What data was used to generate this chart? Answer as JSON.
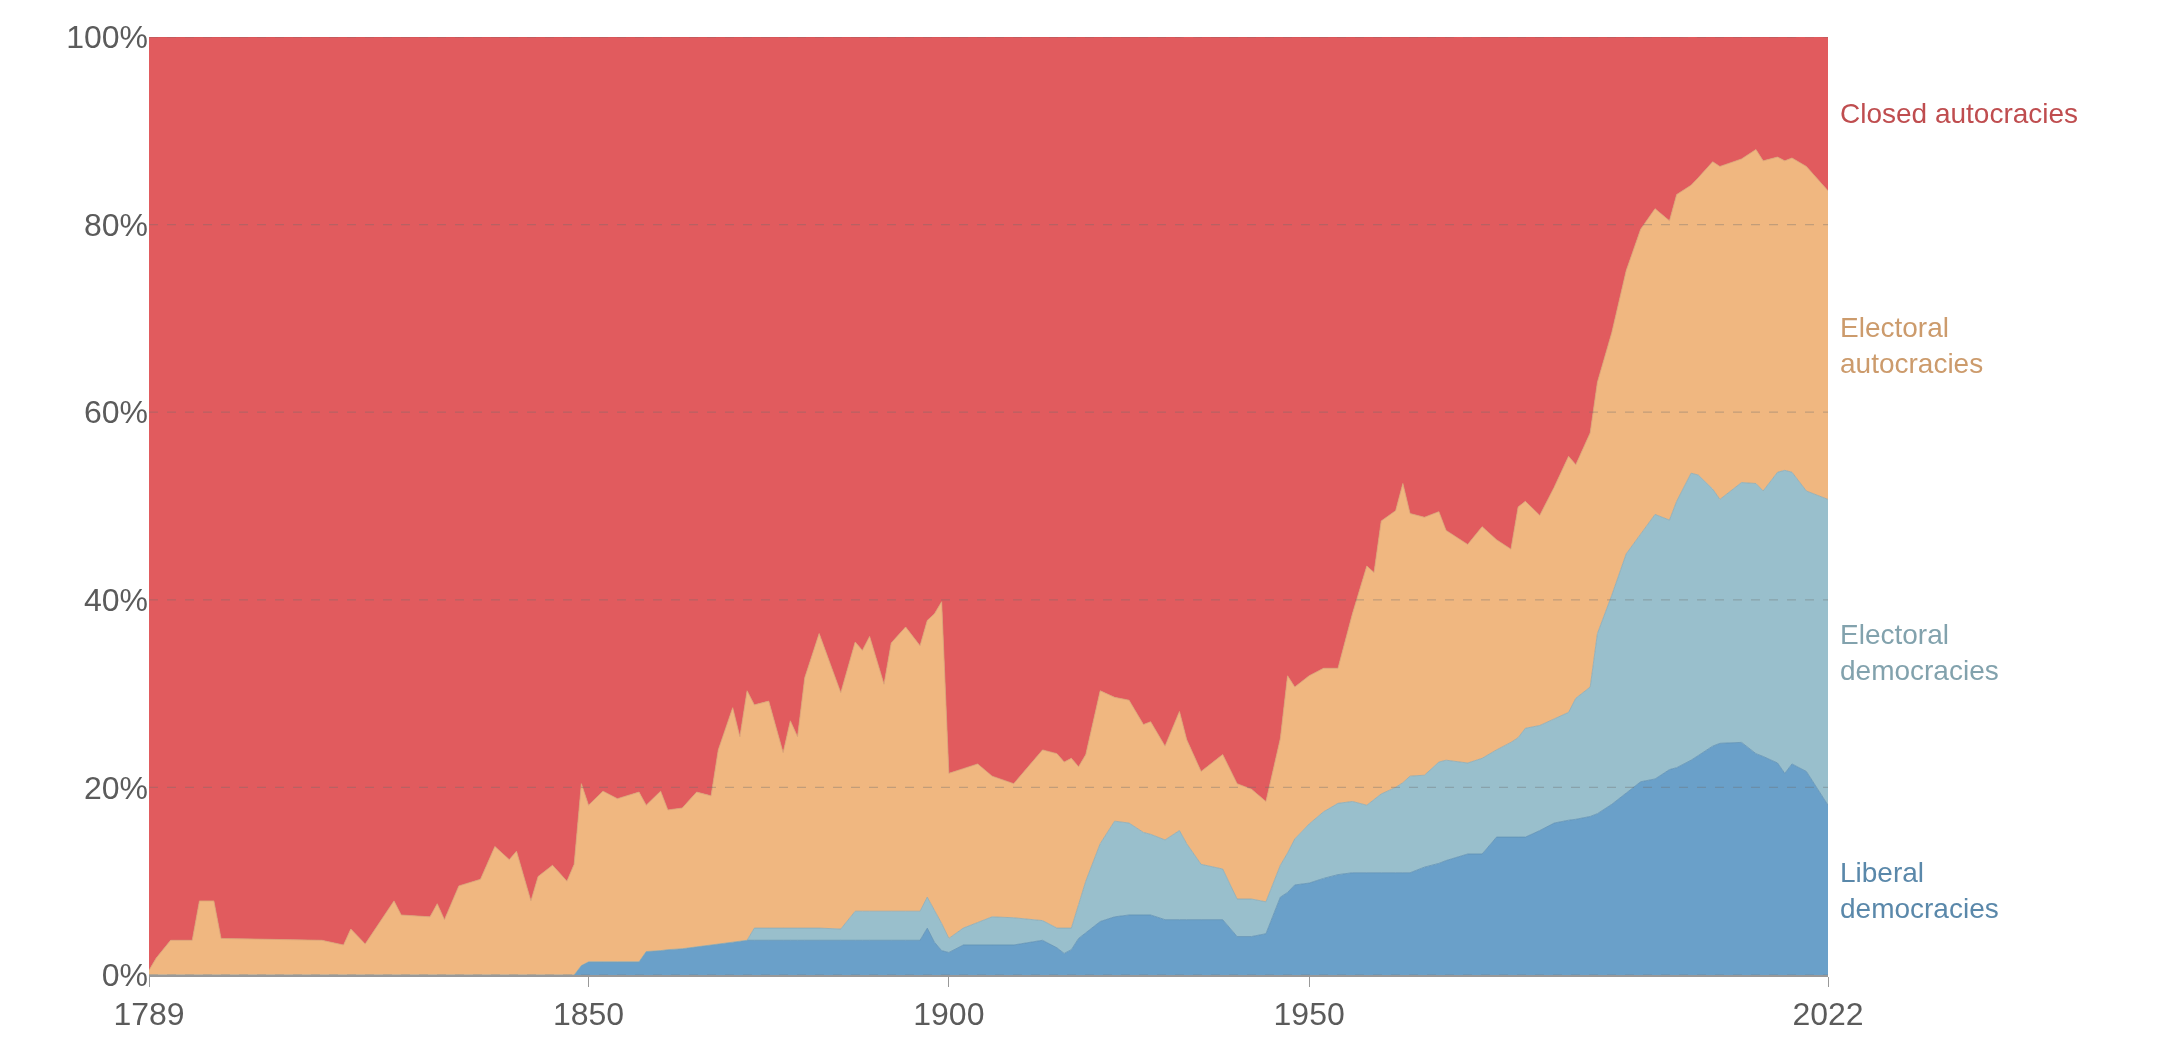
{
  "chart_data": {
    "type": "area",
    "stacked": true,
    "legend": false,
    "grid": "y",
    "x": [
      1789,
      1790,
      1792,
      1795,
      1796,
      1798,
      1799,
      1813,
      1816,
      1817,
      1819,
      1823,
      1824,
      1828,
      1829,
      1830,
      1832,
      1835,
      1837,
      1839,
      1840,
      1842,
      1843,
      1845,
      1847,
      1848,
      1849,
      1850,
      1852,
      1854,
      1857,
      1858,
      1860,
      1861,
      1863,
      1865,
      1867,
      1868,
      1870,
      1871,
      1872,
      1873,
      1875,
      1877,
      1878,
      1879,
      1880,
      1882,
      1885,
      1887,
      1888,
      1889,
      1891,
      1892,
      1894,
      1896,
      1897,
      1898,
      1899,
      1900,
      1902,
      1904,
      1906,
      1909,
      1913,
      1915,
      1916,
      1917,
      1918,
      1919,
      1921,
      1923,
      1925,
      1927,
      1928,
      1930,
      1932,
      1933,
      1935,
      1938,
      1940,
      1942,
      1944,
      1946,
      1947,
      1948,
      1950,
      1952,
      1954,
      1956,
      1958,
      1959,
      1960,
      1962,
      1963,
      1964,
      1966,
      1968,
      1969,
      1972,
      1974,
      1976,
      1978,
      1979,
      1980,
      1982,
      1984,
      1986,
      1987,
      1989,
      1990,
      1992,
      1994,
      1996,
      1998,
      2000,
      2001,
      2003,
      2004,
      2006,
      2007,
      2010,
      2012,
      2013,
      2015,
      2016,
      2017,
      2019,
      2022
    ],
    "series": [
      {
        "name": "Liberal democracies",
        "color": "#6aa0c9",
        "values": [
          0,
          0,
          0,
          0,
          0,
          0,
          0,
          0,
          0,
          0,
          0,
          0,
          0,
          0,
          0,
          0,
          0,
          0,
          0,
          0,
          0,
          0,
          0,
          0,
          0,
          0,
          1.0,
          1.4,
          1.4,
          1.4,
          1.4,
          2.5,
          2.6,
          2.7,
          2.8,
          3.0,
          3.2,
          3.3,
          3.5,
          3.6,
          3.7,
          3.7,
          3.7,
          3.7,
          3.7,
          3.7,
          3.7,
          3.7,
          3.7,
          3.7,
          3.7,
          3.7,
          3.7,
          3.7,
          3.7,
          3.7,
          5.0,
          3.5,
          2.6,
          2.4,
          3.2,
          3.2,
          3.2,
          3.2,
          3.7,
          2.9,
          2.3,
          2.7,
          3.9,
          4.5,
          5.7,
          6.2,
          6.4,
          6.4,
          6.4,
          5.9,
          5.9,
          5.9,
          5.9,
          5.9,
          4.1,
          4.1,
          4.4,
          8.3,
          8.8,
          9.6,
          9.8,
          10.3,
          10.7,
          10.9,
          10.9,
          10.9,
          10.9,
          10.9,
          10.9,
          10.9,
          11.5,
          11.9,
          12.2,
          12.9,
          12.9,
          14.7,
          14.7,
          14.7,
          14.7,
          15.4,
          16.2,
          16.5,
          16.6,
          16.9,
          17.2,
          18.2,
          19.4,
          20.6,
          20.9,
          21.9,
          22.1,
          22.9,
          23.4,
          24.4,
          24.7,
          24.8,
          23.6,
          23.3,
          22.6,
          21.5,
          22.5,
          21.7,
          18.1
        ]
      },
      {
        "name": "Electoral democracies",
        "color": "#99bfcc",
        "values": [
          0,
          0,
          0,
          0,
          0,
          0,
          0,
          0,
          0,
          0,
          0,
          0,
          0,
          0,
          0,
          0,
          0,
          0,
          0,
          0,
          0,
          0,
          0,
          0,
          0,
          0,
          0,
          0,
          0,
          0,
          0,
          0,
          0,
          0,
          0,
          0,
          0,
          0,
          0,
          0,
          0,
          1.3,
          1.3,
          1.3,
          1.3,
          1.3,
          1.3,
          1.3,
          1.2,
          3.1,
          3.1,
          3.1,
          3.1,
          3.1,
          3.1,
          3.1,
          3.3,
          3.4,
          2.9,
          1.5,
          1.8,
          2.4,
          3.0,
          2.9,
          2.1,
          2.1,
          2.7,
          2.3,
          3.6,
          5.5,
          8.3,
          10.2,
          9.8,
          8.8,
          8.6,
          8.5,
          9.5,
          8.1,
          5.9,
          5.4,
          4.0,
          4.0,
          3.4,
          3.4,
          4.2,
          4.9,
          6.3,
          7.1,
          7.6,
          7.6,
          7.2,
          7.8,
          8.4,
          9.1,
          9.6,
          10.3,
          9.8,
          10.8,
          10.7,
          9.7,
          10.2,
          9.3,
          10.1,
          10.6,
          11.6,
          11.2,
          11.1,
          11.5,
          12.9,
          13.8,
          19.2,
          22.3,
          25.5,
          26.4,
          28.2,
          26.6,
          28.4,
          30.6,
          29.9,
          27.4,
          26.0,
          27.7,
          28.8,
          28.3,
          31.0,
          32.3,
          31.1,
          29.9,
          32.6
        ]
      },
      {
        "name": "Electoral autocracies",
        "color": "#f0b780",
        "values": [
          0.5,
          1.8,
          3.7,
          3.7,
          7.9,
          7.9,
          3.9,
          3.7,
          3.2,
          4.9,
          3.3,
          7.9,
          6.4,
          6.2,
          7.6,
          5.9,
          9.5,
          10.2,
          13.7,
          12.3,
          13.2,
          7.9,
          10.5,
          11.7,
          10.0,
          11.8,
          19.4,
          16.7,
          18.2,
          17.4,
          18.1,
          15.6,
          17.0,
          14.9,
          15.0,
          16.5,
          15.9,
          20.7,
          25.0,
          21.8,
          26.6,
          23.8,
          24.2,
          18.7,
          22.1,
          20.4,
          26.7,
          31.4,
          25.2,
          28.7,
          27.8,
          29.3,
          24.2,
          28.6,
          30.3,
          28.3,
          29.5,
          31.6,
          34.3,
          17.6,
          17.0,
          16.9,
          15.0,
          14.3,
          18.2,
          18.6,
          17.7,
          18.1,
          14.7,
          13.5,
          16.3,
          13.2,
          13.1,
          11.5,
          12.0,
          10.0,
          12.7,
          11.1,
          9.9,
          12.2,
          12.3,
          11.7,
          10.7,
          13.5,
          18.9,
          16.2,
          15.8,
          15.3,
          14.4,
          20.0,
          25.5,
          24.2,
          29.1,
          29.5,
          31.9,
          28.0,
          27.5,
          26.7,
          24.5,
          23.3,
          24.7,
          22.4,
          20.6,
          24.6,
          24.2,
          22.4,
          24.7,
          27.3,
          24.9,
          27.1,
          26.8,
          28.0,
          30.2,
          32.5,
          32.6,
          31.9,
          32.7,
          30.7,
          31.7,
          34.9,
          35.5,
          34.5,
          35.6,
          35.2,
          33.6,
          33.0,
          33.5,
          34.6,
          32.9
        ]
      },
      {
        "name": "Closed autocracies",
        "color": "#e15b5e",
        "values": [
          99.5,
          98.2,
          96.3,
          96.3,
          92.1,
          92.1,
          96.1,
          96.3,
          96.8,
          95.1,
          96.7,
          92.1,
          93.6,
          93.8,
          92.4,
          94.1,
          90.5,
          89.8,
          86.3,
          87.7,
          86.8,
          92.1,
          89.5,
          88.3,
          90.0,
          88.2,
          79.6,
          81.9,
          80.4,
          81.2,
          80.5,
          81.9,
          80.4,
          82.4,
          82.2,
          80.5,
          80.9,
          76.0,
          71.5,
          74.6,
          69.7,
          71.2,
          70.8,
          76.3,
          72.9,
          74.6,
          68.3,
          63.6,
          69.9,
          64.5,
          65.4,
          63.9,
          69.0,
          64.6,
          62.9,
          64.9,
          62.2,
          61.5,
          60.2,
          78.5,
          78.0,
          77.5,
          78.8,
          79.6,
          76.0,
          76.4,
          77.3,
          76.9,
          77.8,
          76.5,
          69.7,
          70.4,
          70.7,
          73.3,
          73.0,
          75.6,
          71.9,
          75.0,
          78.3,
          76.5,
          79.6,
          80.2,
          81.5,
          74.8,
          68.1,
          69.3,
          68.1,
          67.3,
          67.3,
          61.5,
          56.4,
          57.1,
          51.6,
          50.5,
          47.6,
          50.8,
          51.2,
          50.6,
          52.6,
          54.2,
          52.2,
          53.6,
          54.6,
          50.1,
          49.5,
          51.0,
          48.0,
          44.7,
          45.6,
          42.2,
          36.8,
          31.5,
          24.9,
          20.5,
          18.3,
          19.6,
          16.8,
          15.9,
          15.0,
          13.3,
          13.8,
          13.0,
          12.0,
          13.2,
          12.8,
          13.2,
          12.9,
          13.9,
          16.4
        ]
      }
    ],
    "xlim": [
      1789,
      2022
    ],
    "xticks": [
      1789,
      1850,
      1900,
      1950,
      2022
    ],
    "ylim": [
      0,
      100
    ],
    "yticks": [
      {
        "value": 0,
        "label": "0%"
      },
      {
        "value": 20,
        "label": "20%"
      },
      {
        "value": 40,
        "label": "40%"
      },
      {
        "value": 60,
        "label": "60%"
      },
      {
        "value": 80,
        "label": "80%"
      },
      {
        "value": 100,
        "label": "100%"
      }
    ]
  }
}
